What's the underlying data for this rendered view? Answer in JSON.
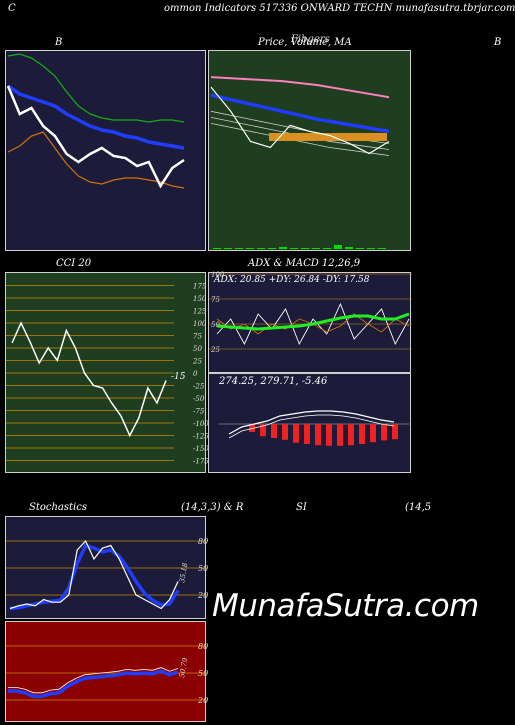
{
  "header": {
    "left": "C",
    "text": "ommon  Indicators 517336  ONWARD TECHN  munafasutra.tbrjar.com"
  },
  "colors": {
    "navy": "#1c1c3a",
    "green_panel": "#1f3d1f",
    "red_panel": "#8b0000",
    "price_white": "#ffffff",
    "ma_blue": "#1f3dff",
    "ma_green": "#13b013",
    "ma_orange": "#d07010",
    "ma_pink": "#ff7fbf",
    "volume_green": "#00dd00"
  },
  "watermark": "MunafaSutra.com",
  "chart_data": [
    {
      "type": "line",
      "id": "bollinger",
      "title": "B",
      "series": [
        {
          "color_key": "ma_green",
          "values": [
            98,
            99,
            97,
            93,
            88,
            80,
            73,
            69,
            67,
            66,
            66,
            66,
            65,
            66,
            66,
            65
          ]
        },
        {
          "color_key": "ma_blue",
          "values": [
            83,
            79,
            77,
            75,
            73,
            69,
            66,
            63,
            61,
            60,
            58,
            57,
            55,
            54,
            53,
            52
          ]
        },
        {
          "color_key": "ma_orange",
          "values": [
            50,
            53,
            58,
            60,
            52,
            44,
            38,
            35,
            34,
            36,
            37,
            37,
            36,
            35,
            33,
            32
          ]
        },
        {
          "color_key": "price_white",
          "values": [
            83,
            69,
            72,
            63,
            58,
            49,
            45,
            49,
            52,
            48,
            47,
            43,
            45,
            33,
            42,
            46
          ]
        }
      ]
    },
    {
      "type": "line",
      "id": "price_ma",
      "title": "Price, Volume, MA",
      "title_b": "Fibgers",
      "series": [
        {
          "color_key": "ma_pink",
          "values": [
            0.87,
            0.86,
            0.85,
            0.83,
            0.8,
            0.77
          ]
        },
        {
          "color_key": "ma_blue",
          "values": [
            0.78,
            0.74,
            0.7,
            0.66,
            0.63,
            0.6
          ]
        },
        {
          "color_key": "price_white",
          "values": [
            0.82,
            0.7,
            0.55,
            0.52,
            0.63,
            0.6,
            0.58,
            0.54,
            0.49,
            0.55
          ]
        }
      ],
      "volume": [
        1,
        1,
        1,
        1,
        1,
        1,
        2,
        1,
        1,
        1,
        1,
        4,
        2,
        1,
        1,
        1
      ]
    },
    {
      "type": "line",
      "id": "cci",
      "title": "CCI 20",
      "value_label": "-15",
      "yticks": [
        175,
        150,
        125,
        100,
        75,
        50,
        25,
        0,
        -25,
        -50,
        -75,
        -100,
        -125,
        -150,
        -175
      ],
      "values": [
        60,
        100,
        62,
        20,
        50,
        25,
        85,
        50,
        0,
        -25,
        -30,
        -60,
        -85,
        -125,
        -90,
        -30,
        -60,
        -15
      ]
    },
    {
      "type": "line",
      "id": "adx",
      "title": "ADX  & MACD 12,26,9",
      "readout": "ADX: 20.85  +DY: 26.84  -DY: 17.58",
      "yticks": [
        100,
        75,
        50,
        25
      ],
      "macd_readout": "274.25,  279.71,  -5.46",
      "adx": [
        0.48,
        0.47,
        0.46,
        0.45,
        0.46,
        0.47,
        0.48,
        0.5,
        0.53,
        0.56,
        0.58,
        0.58,
        0.55,
        0.55,
        0.6
      ],
      "macd_bars": [
        0.5,
        0.57,
        0.6,
        0.63,
        0.68,
        0.7,
        0.72,
        0.73,
        0.73,
        0.72,
        0.7,
        0.67,
        0.64,
        0.62
      ]
    },
    {
      "type": "line",
      "id": "stochastics",
      "title": "Stochastics",
      "params": "(14,3,3) & R",
      "value_label": "35.18",
      "yticks": [
        80,
        50,
        20
      ],
      "k": [
        5,
        8,
        10,
        8,
        15,
        12,
        12,
        20,
        70,
        80,
        60,
        72,
        75,
        60,
        40,
        20,
        15,
        10,
        5,
        15,
        35
      ],
      "d": [
        5,
        6,
        8,
        10,
        12,
        13,
        14,
        28,
        55,
        75,
        72,
        68,
        70,
        63,
        50,
        35,
        22,
        14,
        9,
        10,
        25
      ]
    },
    {
      "type": "line",
      "id": "rsi",
      "title": "SI",
      "params": "(14,5",
      "value_label": "50.79",
      "yticks": [
        80,
        50,
        20
      ],
      "values": [
        30,
        30,
        28,
        24,
        24,
        27,
        28,
        35,
        40,
        44,
        45,
        46,
        47,
        48,
        50,
        49,
        50,
        49,
        52,
        48,
        51
      ]
    }
  ]
}
